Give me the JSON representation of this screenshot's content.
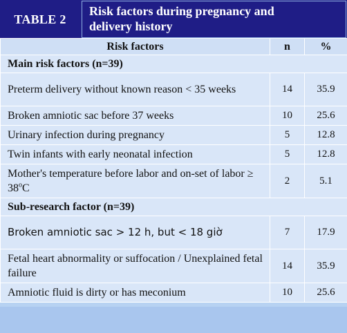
{
  "tag": "TABLE 2",
  "title_line1": "Risk factors during pregnancy and",
  "title_line2": "delivery history",
  "columns": {
    "factor": "Risk factors",
    "n": "n",
    "pct": "%"
  },
  "section1": "Main risk factors (n=39)",
  "rows1": [
    {
      "label": "Preterm delivery without known reason < 35 weeks",
      "n": "14",
      "pct": "35.9"
    },
    {
      "label": "Broken amniotic sac before 37 weeks",
      "n": "10",
      "pct": "25.6"
    },
    {
      "label": "Urinary infection during pregnancy",
      "n": "5",
      "pct": "12.8"
    },
    {
      "label": "Twin infants with early neonatal infection",
      "n": "5",
      "pct": "12.8"
    },
    {
      "label_prefix": "Mother's temperature before labor and on-set of labor ≥ 38",
      "label_sup": "o",
      "label_suffix": "C",
      "n": "2",
      "pct": "5.1"
    }
  ],
  "section2": "Sub-research factor (n=39)",
  "rows2": [
    {
      "label": "Broken amniotic sac > 12 h, but < 18 giờ",
      "n": "7",
      "pct": "17.9"
    },
    {
      "label": "Fetal heart abnormality or suffocation / Unexplained fetal failure",
      "n": "14",
      "pct": "35.9"
    },
    {
      "label": "Amniotic fluid is dirty or has meconium",
      "n": "10",
      "pct": "25.6"
    }
  ]
}
